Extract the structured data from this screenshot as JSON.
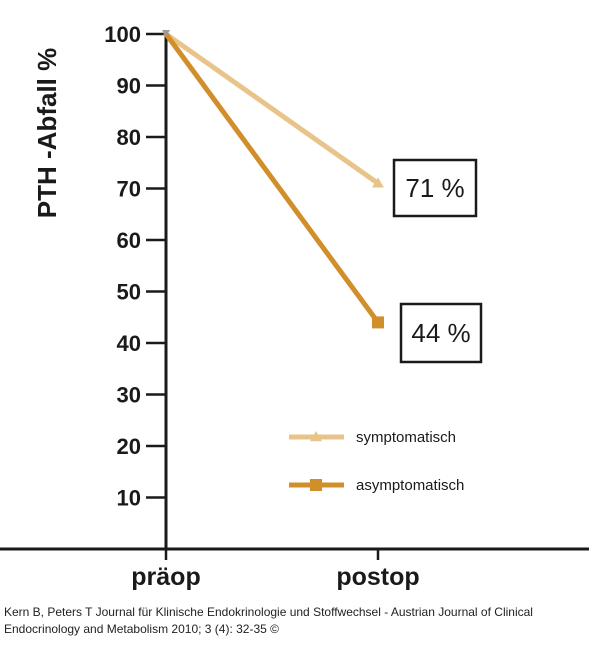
{
  "chart_data": {
    "type": "line",
    "title": "",
    "xlabel": "",
    "ylabel": "PTH -Abfall %",
    "categories": [
      "präop",
      "postop"
    ],
    "ylim": [
      0,
      100
    ],
    "yticks": [
      10,
      20,
      30,
      40,
      50,
      60,
      70,
      80,
      90,
      100
    ],
    "grid": false,
    "legend_position": "lower-right",
    "series": [
      {
        "name": "symptomatisch",
        "values": [
          100,
          71
        ],
        "color": "#e8c48a",
        "marker": "triangle"
      },
      {
        "name": "asymptomatisch",
        "values": [
          100,
          44
        ],
        "color": "#d18f2c",
        "marker": "square"
      }
    ],
    "annotations": [
      {
        "text": "71 %",
        "series": "symptomatisch"
      },
      {
        "text": "44 %",
        "series": "asymptomatisch"
      }
    ]
  },
  "citation": "Kern B, Peters T Journal für Klinische Endokrinologie und Stoffwechsel - Austrian Journal of Clinical Endocrinology and Metabolism 2010; 3 (4): 32-35 ©"
}
